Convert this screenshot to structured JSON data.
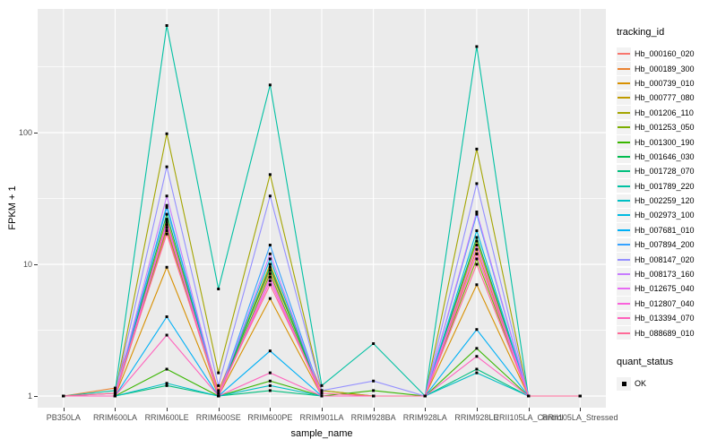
{
  "figure": {
    "y_axis_title": "FPKM + 1",
    "x_axis_title": "sample_name",
    "legend_title": "tracking_id",
    "quant_legend_title": "quant_status",
    "quant_legend_item": "OK",
    "colors": {
      "panel_background": "#EBEBEB",
      "gridline": "#FFFFFF",
      "tick_text": "#4D4D4D",
      "point": "#000000",
      "legend_key_background": "#F2F2F2"
    }
  },
  "chart_data": {
    "type": "line",
    "title": "",
    "xlabel": "sample_name",
    "ylabel": "FPKM + 1",
    "y_scale": "log10",
    "ylim": [
      1,
      1000
    ],
    "yticks": [
      1,
      10,
      100
    ],
    "y_minor_gridlines": [
      3.1623,
      31.623,
      316.23
    ],
    "grid": true,
    "legend_position": "right",
    "point_marker": "black-square",
    "quant_status": {
      "label": "OK",
      "marker": "black-square"
    },
    "categories": [
      "PB350LA",
      "RRIM600LA",
      "RRIM600LE",
      "RRIM600SE",
      "RRIM600PE",
      "RRIM901LA",
      "RRIM928BA",
      "RRIM928LA",
      "RRIM928LE",
      "RRII105LA_Control",
      "RRII105LA_Stressed"
    ],
    "series": [
      {
        "name": "Hb_000160_020",
        "color": "#F8766D",
        "values": [
          1,
          1,
          18,
          1,
          8,
          1,
          1,
          1,
          12,
          1,
          1
        ]
      },
      {
        "name": "Hb_000189_300",
        "color": "#EA8331",
        "values": [
          1,
          1.15,
          20,
          1.1,
          9,
          1.1,
          1,
          1,
          13,
          1,
          1
        ]
      },
      {
        "name": "Hb_000739_010",
        "color": "#D89000",
        "values": [
          1,
          1,
          9.5,
          1,
          5.5,
          1,
          1,
          1,
          7,
          1,
          1
        ]
      },
      {
        "name": "Hb_000777_080",
        "color": "#C09B00",
        "values": [
          1,
          1,
          22,
          1,
          10,
          1,
          1,
          1,
          15,
          1,
          1
        ]
      },
      {
        "name": "Hb_001206_110",
        "color": "#A3A500",
        "values": [
          1,
          1.05,
          98,
          1.5,
          48,
          1.1,
          1,
          1,
          75,
          1,
          1
        ]
      },
      {
        "name": "Hb_001253_050",
        "color": "#7CAE00",
        "values": [
          1,
          1,
          19,
          1,
          8.5,
          1,
          1,
          1,
          11,
          1,
          1
        ]
      },
      {
        "name": "Hb_001300_190",
        "color": "#39B600",
        "values": [
          1,
          1,
          1.6,
          1,
          1.3,
          1,
          1.1,
          1,
          2.3,
          1,
          1
        ]
      },
      {
        "name": "Hb_001646_030",
        "color": "#00BB4E",
        "values": [
          1,
          1,
          24,
          1,
          9.5,
          1,
          1,
          1,
          16,
          1,
          1
        ]
      },
      {
        "name": "Hb_001728_070",
        "color": "#00BF7D",
        "values": [
          1,
          1,
          1.2,
          1,
          1.1,
          1,
          1,
          1,
          1.6,
          1,
          1
        ]
      },
      {
        "name": "Hb_001789_220",
        "color": "#00C1A3",
        "values": [
          1,
          1.1,
          650,
          6.5,
          230,
          1.2,
          2.5,
          1,
          450,
          1,
          1
        ]
      },
      {
        "name": "Hb_002259_120",
        "color": "#00BFC4",
        "values": [
          1,
          1,
          1.25,
          1,
          1.2,
          1,
          1,
          1,
          1.5,
          1,
          1
        ]
      },
      {
        "name": "Hb_002973_100",
        "color": "#00BAE0",
        "values": [
          1,
          1,
          28,
          1,
          11,
          1,
          1,
          1,
          18,
          1,
          1
        ]
      },
      {
        "name": "Hb_007681_010",
        "color": "#00B0F6",
        "values": [
          1,
          1,
          4,
          1,
          2.2,
          1,
          1,
          1,
          3.2,
          1,
          1
        ]
      },
      {
        "name": "Hb_007894_200",
        "color": "#35A2FF",
        "values": [
          1,
          1,
          27,
          1,
          14,
          1,
          1,
          1,
          24,
          1,
          1
        ]
      },
      {
        "name": "Hb_008147_020",
        "color": "#9590FF",
        "values": [
          1,
          1.05,
          55,
          1.2,
          33,
          1.1,
          1.3,
          1,
          41,
          1,
          1
        ]
      },
      {
        "name": "Hb_008173_160",
        "color": "#C77CFF",
        "values": [
          1,
          1,
          33,
          1,
          12,
          1,
          1,
          1,
          25,
          1,
          1
        ]
      },
      {
        "name": "Hb_012675_040",
        "color": "#E76BF3",
        "values": [
          1,
          1,
          21,
          1,
          8,
          1,
          1,
          1,
          14,
          1,
          1
        ]
      },
      {
        "name": "Hb_012807_040",
        "color": "#FA62DB",
        "values": [
          1,
          1,
          20,
          1,
          7.5,
          1,
          1,
          1,
          12,
          1,
          1
        ]
      },
      {
        "name": "Hb_013394_070",
        "color": "#FF62BC",
        "values": [
          1,
          1,
          2.9,
          1,
          1.5,
          1,
          1,
          1,
          2,
          1,
          1
        ]
      },
      {
        "name": "Hb_088689_010",
        "color": "#FF6A98",
        "values": [
          1,
          1.05,
          17,
          1.05,
          7,
          1.05,
          1,
          1,
          10,
          1,
          1
        ]
      }
    ]
  }
}
